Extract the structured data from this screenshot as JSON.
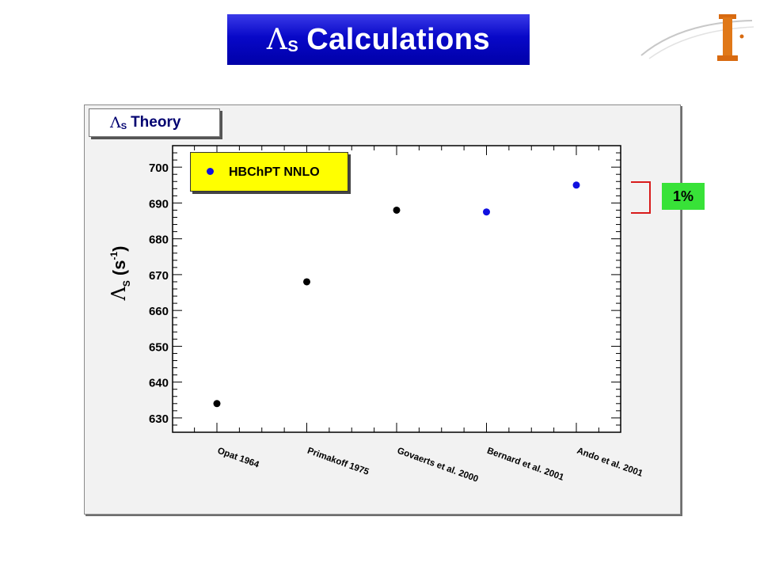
{
  "title": {
    "symbol": "Λ",
    "sub": "S",
    "text": "Calculations"
  },
  "theory_label": {
    "symbol": "Λ",
    "sub": "S",
    "text": "Theory"
  },
  "legend": {
    "label": "HBChPT NNLO",
    "color": "#1010e0"
  },
  "annotation": {
    "text": "1%",
    "bracket_color": "#d81b1b",
    "bg_color": "#38e238"
  },
  "ylabel": {
    "symbol": "Λ",
    "sub": "S",
    "text": "(s",
    "sup": "-1",
    "close": ")"
  },
  "chart_data": {
    "type": "scatter",
    "categories": [
      "Opat 1964",
      "Primakoff 1975",
      "Govaerts et al. 2000",
      "Bernard et al. 2001",
      "Ando et al. 2001"
    ],
    "values": [
      634,
      668,
      688,
      687.5,
      695
    ],
    "point_colors": [
      "#000000",
      "#000000",
      "#000000",
      "#1010e0",
      "#1010e0"
    ],
    "yticks": [
      630,
      640,
      650,
      660,
      670,
      680,
      690,
      700
    ],
    "ylim": [
      626,
      706
    ],
    "grid": false
  }
}
